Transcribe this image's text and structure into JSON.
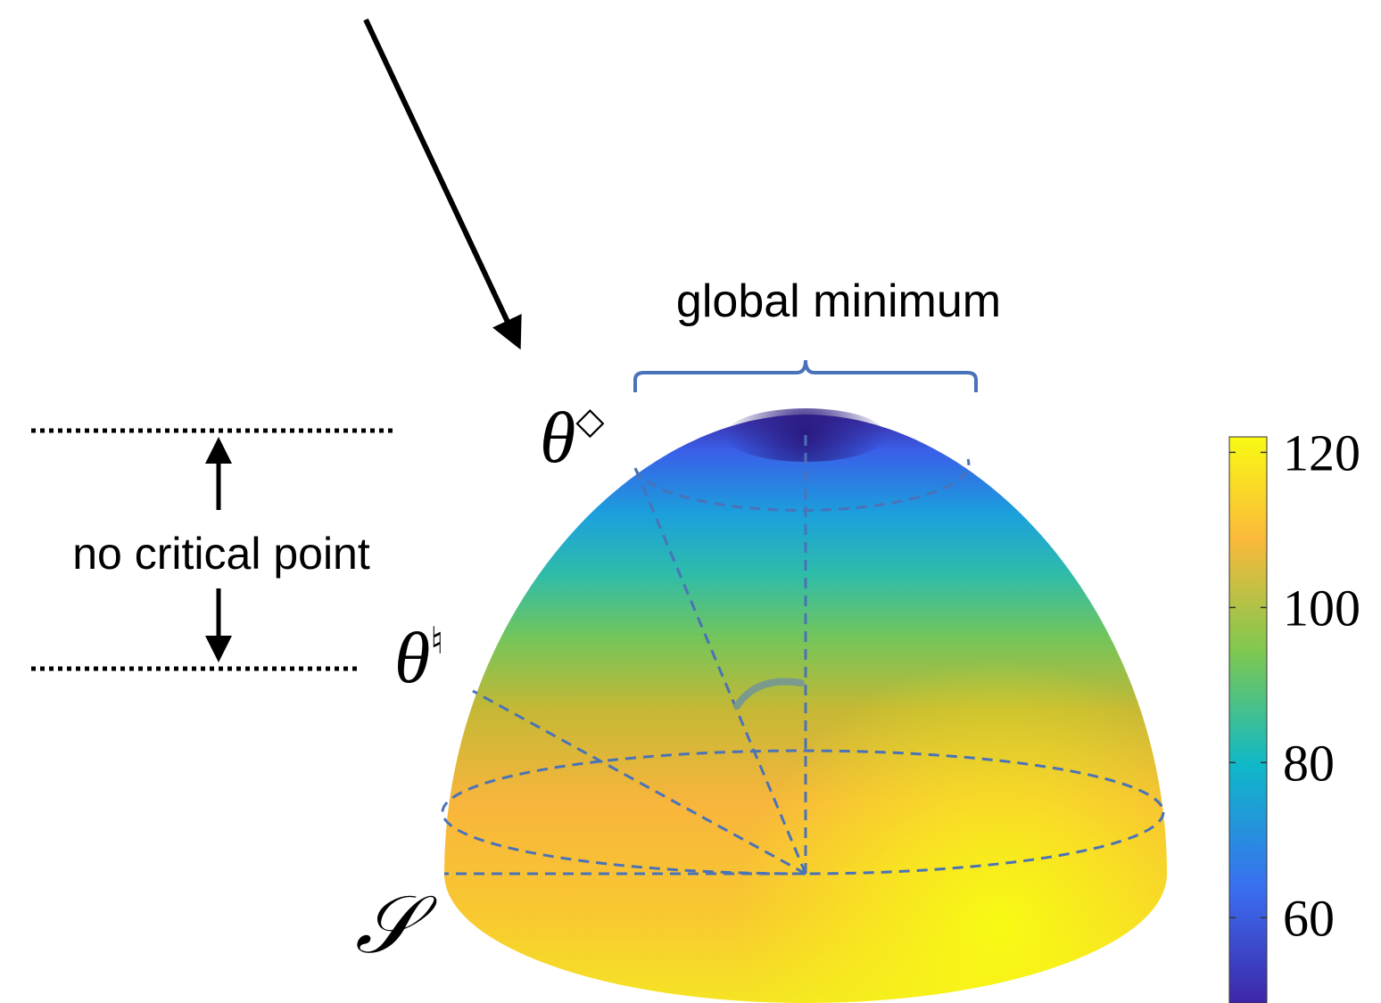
{
  "labels": {
    "global_minimum": "global minimum",
    "no_critical_point": "no critical point",
    "theta_diamond": {
      "base": "θ",
      "sup": "◇"
    },
    "theta_natural": {
      "base": "θ",
      "sup": "♮"
    },
    "surface": "𝒮"
  },
  "colorbar": {
    "lim": [
      49,
      122
    ],
    "ticks": [
      60,
      80,
      100,
      120
    ]
  }
}
